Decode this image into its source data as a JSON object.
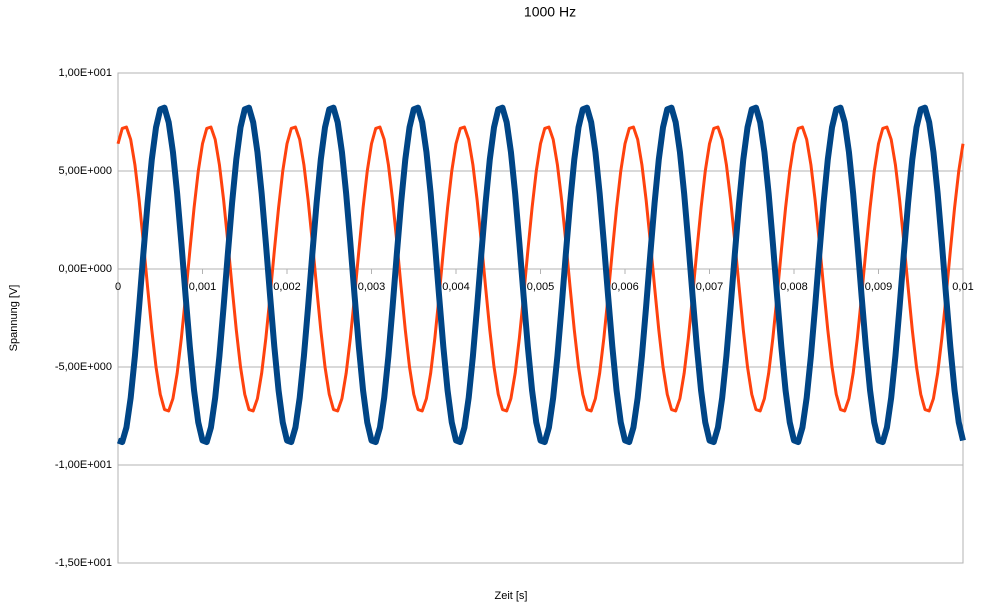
{
  "chart_data": {
    "type": "line",
    "title": "1000 Hz",
    "x_label": "Zeit [s]",
    "y_label": "Spannung [V]",
    "xlim": [
      0,
      0.01
    ],
    "ylim": [
      -15,
      10
    ],
    "xticks": [
      {
        "value": 0,
        "label": "0"
      },
      {
        "value": 0.001,
        "label": "0,001"
      },
      {
        "value": 0.002,
        "label": "0,002"
      },
      {
        "value": 0.003,
        "label": "0,003"
      },
      {
        "value": 0.004,
        "label": "0,004"
      },
      {
        "value": 0.005,
        "label": "0,005"
      },
      {
        "value": 0.006,
        "label": "0,006"
      },
      {
        "value": 0.007,
        "label": "0,007"
      },
      {
        "value": 0.008,
        "label": "0,008"
      },
      {
        "value": 0.009,
        "label": "0,009"
      },
      {
        "value": 0.01,
        "label": "0,01"
      }
    ],
    "yticks": [
      {
        "value": 10,
        "label": "1,00E+001"
      },
      {
        "value": 5,
        "label": "5,00E+000"
      },
      {
        "value": 0,
        "label": "0,00E+000"
      },
      {
        "value": -5,
        "label": "-5,00E+000"
      },
      {
        "value": -10,
        "label": "-1,00E+001"
      },
      {
        "value": -15,
        "label": "-1,50E+001"
      }
    ],
    "grid": true,
    "x": [
      0,
      5e-05,
      0.0001,
      0.00015,
      0.0002,
      0.00025,
      0.0003,
      0.00035,
      0.0004,
      0.00045,
      0.0005,
      0.00055,
      0.0006,
      0.00065,
      0.0007,
      0.00075,
      0.0008,
      0.00085,
      0.0009,
      0.00095,
      0.001,
      0.00105,
      0.0011,
      0.00115,
      0.0012,
      0.00125,
      0.0013,
      0.00135,
      0.0014,
      0.00145,
      0.0015,
      0.00155,
      0.0016,
      0.00165,
      0.0017,
      0.00175,
      0.0018,
      0.00185,
      0.0019,
      0.00195,
      0.002,
      0.00205,
      0.0021,
      0.00215,
      0.0022,
      0.00225,
      0.0023,
      0.00235,
      0.0024,
      0.00245,
      0.0025,
      0.00255,
      0.0026,
      0.00265,
      0.0027,
      0.00275,
      0.0028,
      0.00285,
      0.0029,
      0.00295,
      0.003,
      0.00305,
      0.0031,
      0.00315,
      0.0032,
      0.00325,
      0.0033,
      0.00335,
      0.0034,
      0.00345,
      0.0035,
      0.00355,
      0.0036,
      0.00365,
      0.0037,
      0.00375,
      0.0038,
      0.00385,
      0.0039,
      0.00395,
      0.004,
      0.00405,
      0.0041,
      0.00415,
      0.0042,
      0.00425,
      0.0043,
      0.00435,
      0.0044,
      0.00445,
      0.0045,
      0.00455,
      0.0046,
      0.00465,
      0.0047,
      0.00475,
      0.0048,
      0.00485,
      0.0049,
      0.00495,
      0.005,
      0.00505,
      0.0051,
      0.00515,
      0.0052,
      0.00525,
      0.0053,
      0.00535,
      0.0054,
      0.00545,
      0.0055,
      0.00555,
      0.0056,
      0.00565,
      0.0057,
      0.00575,
      0.0058,
      0.00585,
      0.0059,
      0.00595,
      0.006,
      0.00605,
      0.0061,
      0.00615,
      0.0062,
      0.00625,
      0.0063,
      0.00635,
      0.0064,
      0.00645,
      0.0065,
      0.00655,
      0.0066,
      0.00665,
      0.0067,
      0.00675,
      0.0068,
      0.00685,
      0.0069,
      0.00695,
      0.007,
      0.00705,
      0.0071,
      0.00715,
      0.0072,
      0.00725,
      0.0073,
      0.00735,
      0.0074,
      0.00745,
      0.0075,
      0.00755,
      0.0076,
      0.00765,
      0.0077,
      0.00775,
      0.0078,
      0.00785,
      0.0079,
      0.00795,
      0.008,
      0.00805,
      0.0081,
      0.00815,
      0.0082,
      0.00825,
      0.0083,
      0.00835,
      0.0084,
      0.00845,
      0.0085,
      0.00855,
      0.0086,
      0.00865,
      0.0087,
      0.00875,
      0.0088,
      0.00885,
      0.0089,
      0.00895,
      0.009,
      0.00905,
      0.0091,
      0.00915,
      0.0092,
      0.00925,
      0.0093,
      0.00935,
      0.0094,
      0.00945,
      0.0095,
      0.00955,
      0.0096,
      0.00965,
      0.0097,
      0.00975,
      0.0098,
      0.00985,
      0.0099,
      0.00995,
      0.01
    ],
    "series": [
      {
        "color": "#ff420e",
        "values": [
          6.39,
          7.17,
          7.24,
          6.61,
          5.32,
          3.52,
          1.37,
          -0.92,
          -3.11,
          -5,
          -6.39,
          -7.17,
          -7.24,
          -6.61,
          -5.32,
          -3.52,
          -1.37,
          0.92,
          3.11,
          5,
          6.39,
          7.17,
          7.24,
          6.61,
          5.32,
          3.52,
          1.37,
          -0.92,
          -3.11,
          -5,
          -6.39,
          -7.17,
          -7.24,
          -6.61,
          -5.32,
          -3.52,
          -1.37,
          0.92,
          3.11,
          5,
          6.39,
          7.17,
          7.24,
          6.61,
          5.32,
          3.52,
          1.37,
          -0.92,
          -3.11,
          -5,
          -6.39,
          -7.17,
          -7.24,
          -6.61,
          -5.32,
          -3.52,
          -1.37,
          0.92,
          3.11,
          5,
          6.39,
          7.17,
          7.24,
          6.61,
          5.32,
          3.52,
          1.37,
          -0.92,
          -3.11,
          -5,
          -6.39,
          -7.17,
          -7.24,
          -6.61,
          -5.32,
          -3.52,
          -1.37,
          0.92,
          3.11,
          5,
          6.39,
          7.17,
          7.24,
          6.61,
          5.32,
          3.52,
          1.37,
          -0.92,
          -3.11,
          -5,
          -6.39,
          -7.17,
          -7.24,
          -6.61,
          -5.32,
          -3.52,
          -1.37,
          0.92,
          3.11,
          5,
          6.39,
          7.17,
          7.24,
          6.61,
          5.32,
          3.52,
          1.37,
          -0.92,
          -3.11,
          -5,
          -6.39,
          -7.17,
          -7.24,
          -6.61,
          -5.32,
          -3.52,
          -1.37,
          0.92,
          3.11,
          5,
          6.39,
          7.17,
          7.24,
          6.61,
          5.32,
          3.52,
          1.37,
          -0.92,
          -3.11,
          -5,
          -6.39,
          -7.17,
          -7.24,
          -6.61,
          -5.32,
          -3.52,
          -1.37,
          0.92,
          3.11,
          5,
          6.39,
          7.17,
          7.24,
          6.61,
          5.32,
          3.52,
          1.37,
          -0.92,
          -3.11,
          -5,
          -6.39,
          -7.17,
          -7.24,
          -6.61,
          -5.32,
          -3.52,
          -1.37,
          0.92,
          3.11,
          5,
          6.39,
          7.17,
          7.24,
          6.61,
          5.32,
          3.52,
          1.37,
          -0.92,
          -3.11,
          -5,
          -6.39,
          -7.17,
          -7.24,
          -6.61,
          -5.32,
          -3.52,
          -1.37,
          0.92,
          3.11,
          5,
          6.39,
          7.17,
          7.24,
          6.61,
          5.32,
          3.52,
          1.37,
          -0.92,
          -3.11,
          -5,
          -6.39,
          -7.17,
          -7.24,
          -6.61,
          -5.32,
          -3.52,
          -1.37,
          0.92,
          3.11,
          5,
          6.39
        ]
      },
      {
        "color": "#004586",
        "values": [
          -8.75,
          -8.83,
          -8.08,
          -6.57,
          -4.45,
          -1.91,
          0.78,
          3.36,
          5.59,
          7.23,
          8.15,
          8.23,
          7.48,
          5.97,
          3.85,
          1.31,
          -1.38,
          -3.96,
          -6.19,
          -7.83,
          -8.75,
          -8.83,
          -8.08,
          -6.57,
          -4.45,
          -1.91,
          0.78,
          3.36,
          5.59,
          7.23,
          8.15,
          8.23,
          7.48,
          5.97,
          3.85,
          1.31,
          -1.38,
          -3.96,
          -6.19,
          -7.83,
          -8.75,
          -8.83,
          -8.08,
          -6.57,
          -4.45,
          -1.91,
          0.78,
          3.36,
          5.59,
          7.23,
          8.15,
          8.23,
          7.48,
          5.97,
          3.85,
          1.31,
          -1.38,
          -3.96,
          -6.19,
          -7.83,
          -8.75,
          -8.83,
          -8.08,
          -6.57,
          -4.45,
          -1.91,
          0.78,
          3.36,
          5.59,
          7.23,
          8.15,
          8.23,
          7.48,
          5.97,
          3.85,
          1.31,
          -1.38,
          -3.96,
          -6.19,
          -7.83,
          -8.75,
          -8.83,
          -8.08,
          -6.57,
          -4.45,
          -1.91,
          0.78,
          3.36,
          5.59,
          7.23,
          8.15,
          8.23,
          7.48,
          5.97,
          3.85,
          1.31,
          -1.38,
          -3.96,
          -6.19,
          -7.83,
          -8.75,
          -8.83,
          -8.08,
          -6.57,
          -4.45,
          -1.91,
          0.78,
          3.36,
          5.59,
          7.23,
          8.15,
          8.23,
          7.48,
          5.97,
          3.85,
          1.31,
          -1.38,
          -3.96,
          -6.19,
          -7.83,
          -8.75,
          -8.83,
          -8.08,
          -6.57,
          -4.45,
          -1.91,
          0.78,
          3.36,
          5.59,
          7.23,
          8.15,
          8.23,
          7.48,
          5.97,
          3.85,
          1.31,
          -1.38,
          -3.96,
          -6.19,
          -7.83,
          -8.75,
          -8.83,
          -8.08,
          -6.57,
          -4.45,
          -1.91,
          0.78,
          3.36,
          5.59,
          7.23,
          8.15,
          8.23,
          7.48,
          5.97,
          3.85,
          1.31,
          -1.38,
          -3.96,
          -6.19,
          -7.83,
          -8.75,
          -8.83,
          -8.08,
          -6.57,
          -4.45,
          -1.91,
          0.78,
          3.36,
          5.59,
          7.23,
          8.15,
          8.23,
          7.48,
          5.97,
          3.85,
          1.31,
          -1.38,
          -3.96,
          -6.19,
          -7.83,
          -8.75,
          -8.83,
          -8.08,
          -6.57,
          -4.45,
          -1.91,
          0.78,
          3.36,
          5.59,
          7.23,
          8.15,
          8.23,
          7.48,
          5.97,
          3.85,
          1.31,
          -1.38,
          -3.96,
          -6.19,
          -7.83,
          -8.75
        ]
      }
    ]
  }
}
